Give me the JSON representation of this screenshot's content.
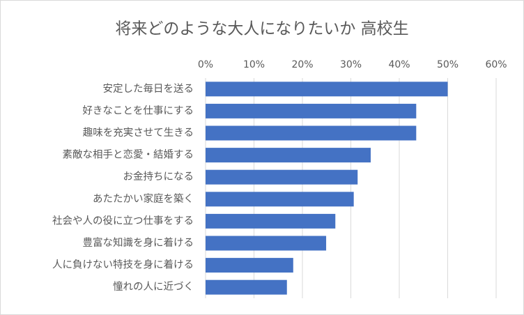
{
  "chart_data": {
    "type": "bar",
    "orientation": "horizontal",
    "title": "将来どのような大人になりたいか 高校生",
    "categories": [
      "安定した毎日を送る",
      "好きなことを仕事にする",
      "趣味を充実させて生きる",
      "素敵な相手と恋愛・結婚する",
      "お金持ちになる",
      "あたたかい家庭を築く",
      "社会や人の役に立つ仕事をする",
      "豊富な知識を身に着ける",
      "人に負けない特技を身に着ける",
      "憧れの人に近づく"
    ],
    "values": [
      50,
      43.5,
      43.5,
      34.1,
      31.4,
      30.6,
      26.8,
      24.9,
      18.1,
      16.8
    ],
    "color": "#4472c4",
    "xlim": [
      0,
      60
    ],
    "xticks": [
      {
        "value": 0,
        "label": "0%"
      },
      {
        "value": 10,
        "label": "10%"
      },
      {
        "value": 20,
        "label": "20%"
      },
      {
        "value": 30,
        "label": "30%"
      },
      {
        "value": 40,
        "label": "40%"
      },
      {
        "value": 50,
        "label": "50%"
      },
      {
        "value": 60,
        "label": "60%"
      }
    ],
    "grid": true
  }
}
